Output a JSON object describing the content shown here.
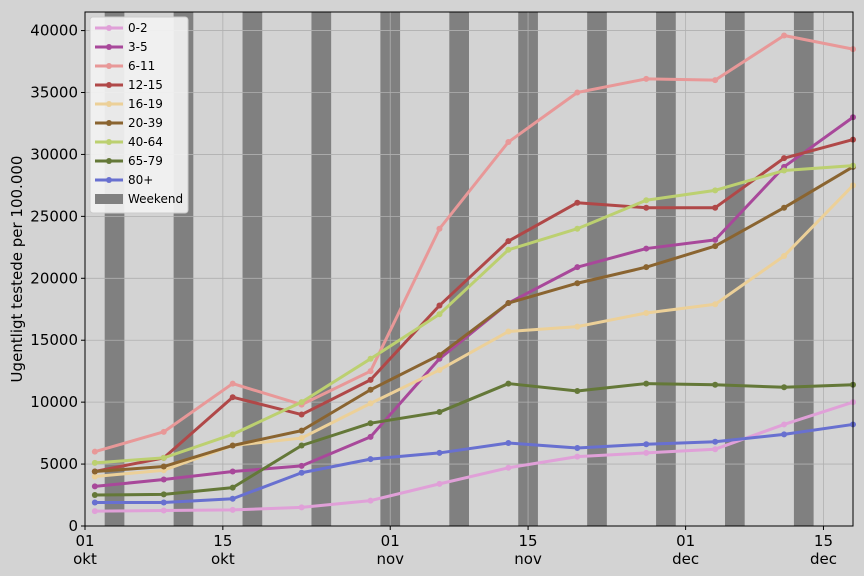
{
  "chart_data": {
    "type": "line",
    "ylabel": "Ugentligt testede per 100.000",
    "xlabel": "",
    "title": "",
    "ylim": [
      0,
      41500
    ],
    "xlim": [
      "2020-10-01",
      "2020-12-18"
    ],
    "y_ticks": [
      0,
      5000,
      10000,
      15000,
      20000,
      25000,
      30000,
      35000,
      40000
    ],
    "y_tick_labels": [
      "0",
      "5000",
      "10000",
      "15000",
      "20000",
      "25000",
      "30000",
      "35000",
      "40000"
    ],
    "x_ticks": [
      {
        "date": "2020-10-01",
        "day": "01",
        "month": "okt"
      },
      {
        "date": "2020-10-15",
        "day": "15",
        "month": "okt"
      },
      {
        "date": "2020-11-01",
        "day": "01",
        "month": "nov"
      },
      {
        "date": "2020-11-15",
        "day": "15",
        "month": "nov"
      },
      {
        "date": "2020-12-01",
        "day": "01",
        "month": "dec"
      },
      {
        "date": "2020-12-15",
        "day": "15",
        "month": "dec"
      }
    ],
    "grid": true,
    "legend_position": "top-left",
    "x": [
      "2020-10-02",
      "2020-10-09",
      "2020-10-16",
      "2020-10-23",
      "2020-10-30",
      "2020-11-06",
      "2020-11-13",
      "2020-11-20",
      "2020-11-27",
      "2020-12-04",
      "2020-12-11",
      "2020-12-18"
    ],
    "weekend_label": "Weekend",
    "weekend_color": "#808080",
    "weekends": [
      [
        "2020-10-03",
        "2020-10-05"
      ],
      [
        "2020-10-10",
        "2020-10-12"
      ],
      [
        "2020-10-17",
        "2020-10-19"
      ],
      [
        "2020-10-24",
        "2020-10-26"
      ],
      [
        "2020-10-31",
        "2020-11-02"
      ],
      [
        "2020-11-07",
        "2020-11-09"
      ],
      [
        "2020-11-14",
        "2020-11-16"
      ],
      [
        "2020-11-21",
        "2020-11-23"
      ],
      [
        "2020-11-28",
        "2020-11-30"
      ],
      [
        "2020-12-05",
        "2020-12-07"
      ],
      [
        "2020-12-12",
        "2020-12-14"
      ],
      [
        "2020-12-19",
        "2020-12-21"
      ]
    ],
    "series": [
      {
        "name": "0-2",
        "color": "#e0a0d8",
        "values": [
          1200,
          1250,
          1300,
          1500,
          2050,
          3400,
          4700,
          5600,
          5900,
          6200,
          8200,
          10000
        ]
      },
      {
        "name": "3-5",
        "color": "#a8489a",
        "values": [
          3200,
          3750,
          4400,
          4850,
          7200,
          13500,
          18000,
          20900,
          22400,
          23100,
          29000,
          33000
        ]
      },
      {
        "name": "6-11",
        "color": "#e89898",
        "values": [
          6000,
          7600,
          11500,
          9800,
          12500,
          24000,
          31000,
          35000,
          36100,
          36000,
          39600,
          38500
        ]
      },
      {
        "name": "12-15",
        "color": "#b04848",
        "values": [
          4400,
          5500,
          10400,
          9000,
          11800,
          17800,
          23000,
          26100,
          25700,
          25700,
          29700,
          31200
        ]
      },
      {
        "name": "16-19",
        "color": "#ecd098",
        "values": [
          4000,
          4500,
          6500,
          7100,
          9900,
          12600,
          15700,
          16100,
          17200,
          17900,
          21800,
          27500
        ]
      },
      {
        "name": "20-39",
        "color": "#8a6430",
        "values": [
          4400,
          4800,
          6500,
          7700,
          11000,
          13800,
          18000,
          19600,
          20900,
          22600,
          25700,
          29000
        ]
      },
      {
        "name": "40-64",
        "color": "#bcd070",
        "values": [
          5100,
          5500,
          7400,
          10000,
          13500,
          17100,
          22300,
          24000,
          26300,
          27100,
          28700,
          29100
        ]
      },
      {
        "name": "65-79",
        "color": "#647838",
        "values": [
          2500,
          2550,
          3100,
          6500,
          8300,
          9200,
          11500,
          10900,
          11500,
          11400,
          11200,
          11400
        ]
      },
      {
        "name": "80+",
        "color": "#6870d0",
        "values": [
          1900,
          1900,
          2200,
          4300,
          5400,
          5900,
          6700,
          6300,
          6600,
          6800,
          7400,
          8200
        ]
      }
    ]
  }
}
